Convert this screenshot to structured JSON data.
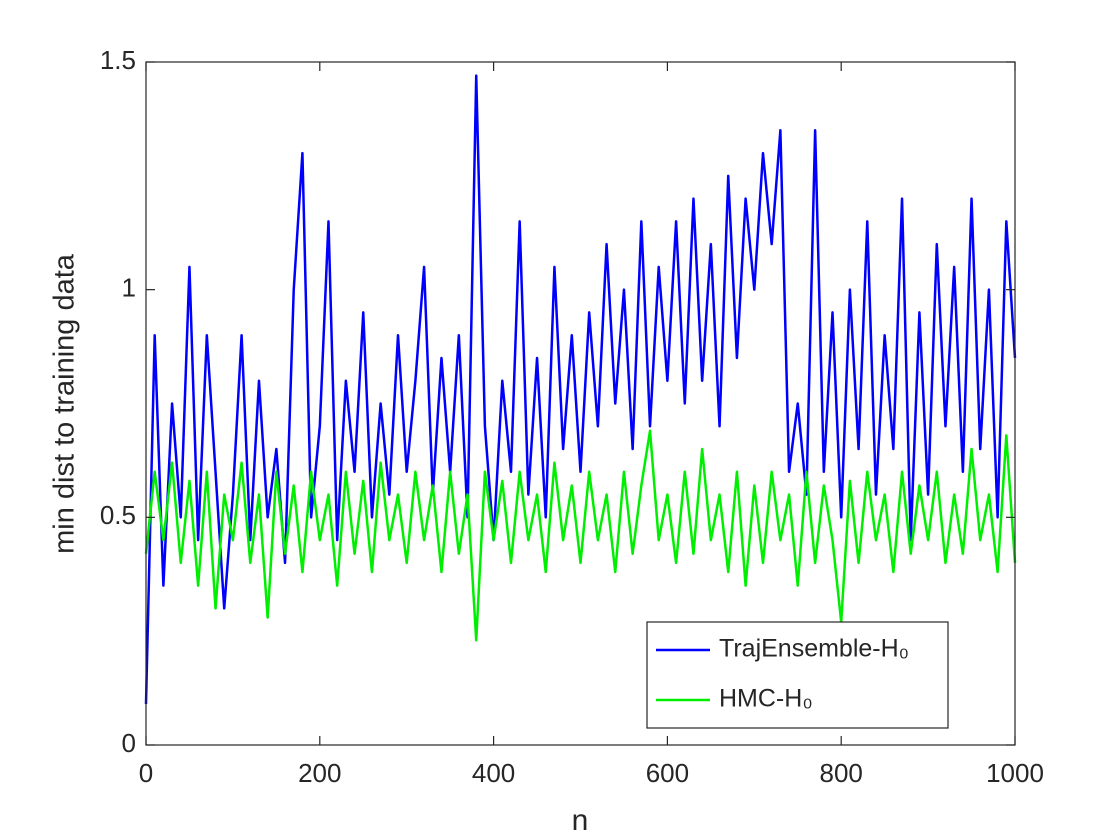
{
  "chart_data": {
    "type": "line",
    "xlabel": "n",
    "ylabel": "min dist to training data",
    "x": [
      0,
      10,
      20,
      30,
      40,
      50,
      60,
      70,
      80,
      90,
      100,
      110,
      120,
      130,
      140,
      150,
      160,
      170,
      180,
      190,
      200,
      210,
      220,
      230,
      240,
      250,
      260,
      270,
      280,
      290,
      300,
      310,
      320,
      330,
      340,
      350,
      360,
      370,
      380,
      390,
      400,
      410,
      420,
      430,
      440,
      450,
      460,
      470,
      480,
      490,
      500,
      510,
      520,
      530,
      540,
      550,
      560,
      570,
      580,
      590,
      600,
      610,
      620,
      630,
      640,
      650,
      660,
      670,
      680,
      690,
      700,
      710,
      720,
      730,
      740,
      750,
      760,
      770,
      780,
      790,
      800,
      810,
      820,
      830,
      840,
      850,
      860,
      870,
      880,
      890,
      900,
      910,
      920,
      930,
      940,
      950,
      960,
      970,
      980,
      990,
      1000
    ],
    "series": [
      {
        "name": "TrajEnsemble-H₀",
        "color": "#0000ff",
        "values": [
          0.09,
          0.9,
          0.35,
          0.75,
          0.5,
          1.05,
          0.45,
          0.9,
          0.6,
          0.3,
          0.55,
          0.9,
          0.45,
          0.8,
          0.5,
          0.65,
          0.4,
          1.0,
          1.3,
          0.5,
          0.7,
          1.15,
          0.45,
          0.8,
          0.6,
          0.95,
          0.5,
          0.75,
          0.55,
          0.9,
          0.6,
          0.8,
          1.05,
          0.55,
          0.85,
          0.6,
          0.9,
          0.5,
          1.47,
          0.7,
          0.45,
          0.8,
          0.6,
          1.15,
          0.55,
          0.85,
          0.5,
          1.05,
          0.65,
          0.9,
          0.6,
          0.95,
          0.7,
          1.1,
          0.75,
          1.0,
          0.65,
          1.15,
          0.7,
          1.05,
          0.8,
          1.15,
          0.75,
          1.2,
          0.8,
          1.1,
          0.7,
          1.25,
          0.85,
          1.2,
          1.0,
          1.3,
          1.1,
          1.35,
          0.6,
          0.75,
          0.55,
          1.35,
          0.6,
          0.95,
          0.5,
          1.0,
          0.65,
          1.15,
          0.55,
          0.9,
          0.65,
          1.2,
          0.45,
          0.95,
          0.55,
          1.1,
          0.7,
          1.05,
          0.6,
          1.2,
          0.65,
          1.0,
          0.5,
          1.15,
          0.85
        ]
      },
      {
        "name": "HMC-H₀",
        "color": "#00ee00",
        "values": [
          0.42,
          0.6,
          0.45,
          0.62,
          0.4,
          0.58,
          0.35,
          0.6,
          0.3,
          0.55,
          0.45,
          0.62,
          0.4,
          0.55,
          0.28,
          0.6,
          0.42,
          0.57,
          0.38,
          0.6,
          0.45,
          0.55,
          0.35,
          0.6,
          0.42,
          0.58,
          0.38,
          0.62,
          0.45,
          0.55,
          0.4,
          0.6,
          0.45,
          0.57,
          0.38,
          0.6,
          0.42,
          0.55,
          0.23,
          0.6,
          0.45,
          0.58,
          0.4,
          0.6,
          0.45,
          0.55,
          0.38,
          0.62,
          0.45,
          0.57,
          0.4,
          0.6,
          0.45,
          0.55,
          0.38,
          0.6,
          0.42,
          0.57,
          0.69,
          0.45,
          0.55,
          0.4,
          0.6,
          0.42,
          0.65,
          0.45,
          0.55,
          0.38,
          0.6,
          0.35,
          0.57,
          0.4,
          0.6,
          0.45,
          0.55,
          0.35,
          0.6,
          0.4,
          0.57,
          0.45,
          0.27,
          0.58,
          0.4,
          0.6,
          0.45,
          0.55,
          0.38,
          0.6,
          0.42,
          0.57,
          0.45,
          0.6,
          0.4,
          0.55,
          0.42,
          0.65,
          0.45,
          0.55,
          0.38,
          0.68,
          0.4
        ]
      }
    ],
    "xlim": [
      0,
      1000
    ],
    "xticks": [
      0,
      200,
      400,
      600,
      800,
      1000
    ],
    "ylim": [
      0,
      1.5
    ],
    "yticks": [
      0,
      0.5,
      1,
      1.5
    ],
    "legend": "lower right"
  }
}
